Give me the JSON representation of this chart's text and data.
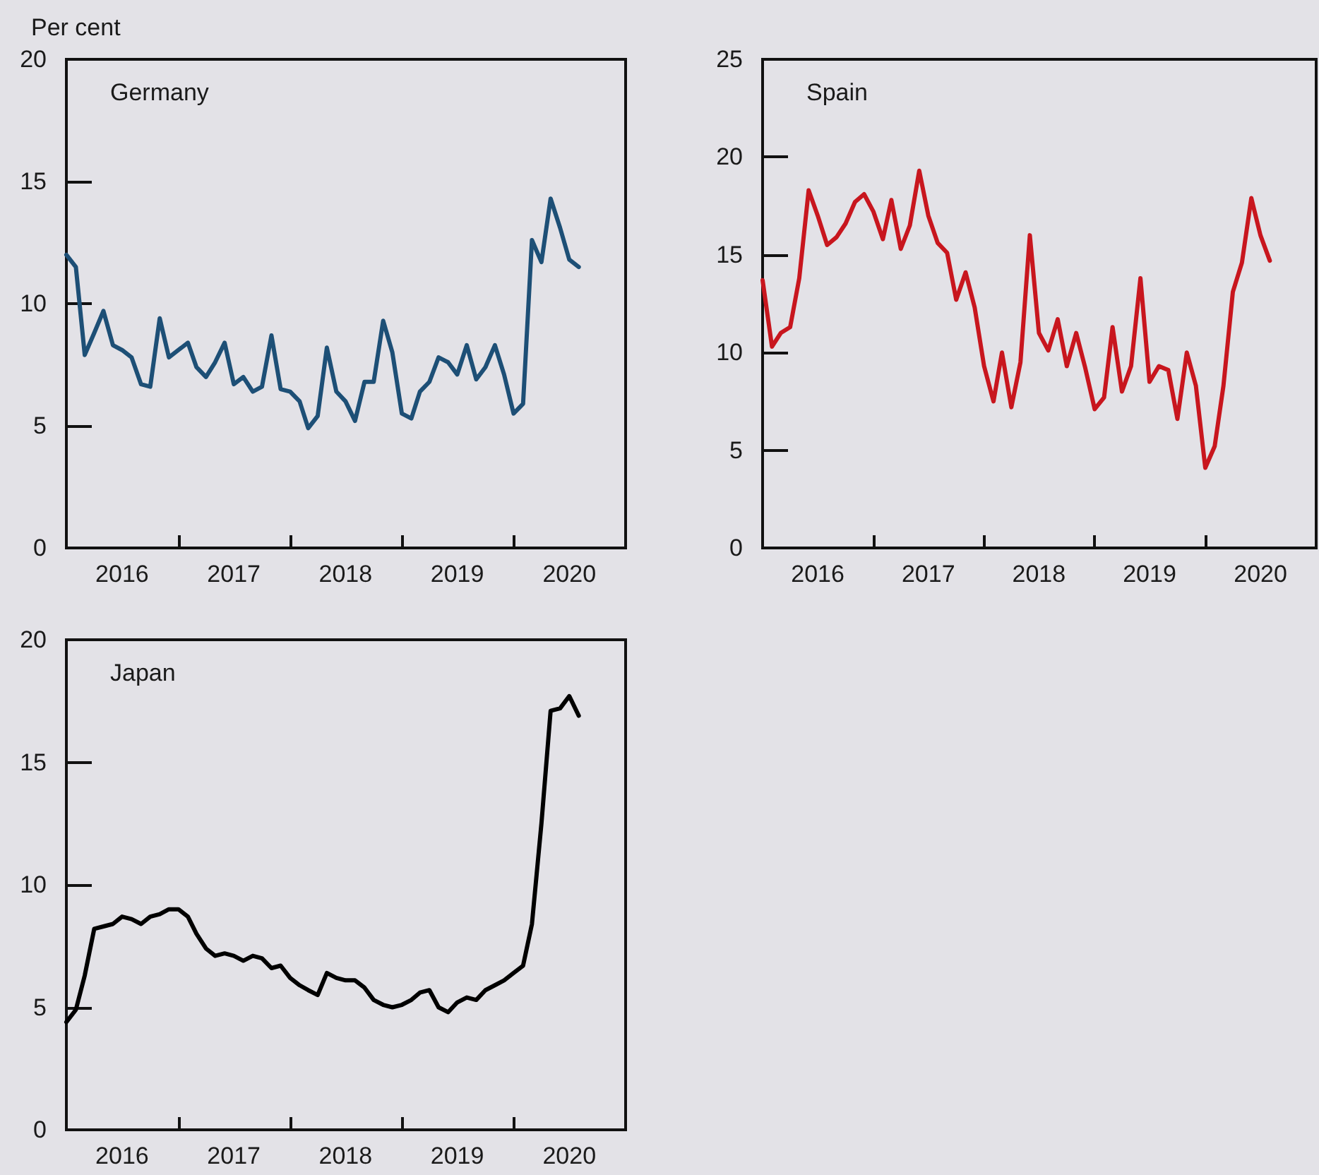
{
  "chart_data": [
    {
      "type": "line",
      "title": "Germany",
      "ylabel": "Per cent",
      "x": [
        "2016-01",
        "2016-02",
        "2016-03",
        "2016-04",
        "2016-05",
        "2016-06",
        "2016-07",
        "2016-08",
        "2016-09",
        "2016-10",
        "2016-11",
        "2016-12",
        "2017-01",
        "2017-02",
        "2017-03",
        "2017-04",
        "2017-05",
        "2017-06",
        "2017-07",
        "2017-08",
        "2017-09",
        "2017-10",
        "2017-11",
        "2017-12",
        "2018-01",
        "2018-02",
        "2018-03",
        "2018-04",
        "2018-05",
        "2018-06",
        "2018-07",
        "2018-08",
        "2018-09",
        "2018-10",
        "2018-11",
        "2018-12",
        "2019-01",
        "2019-02",
        "2019-03",
        "2019-04",
        "2019-05",
        "2019-06",
        "2019-07",
        "2019-08",
        "2019-09",
        "2019-10",
        "2019-11",
        "2019-12",
        "2020-01",
        "2020-02",
        "2020-03",
        "2020-04",
        "2020-05",
        "2020-06",
        "2020-07",
        "2020-08"
      ],
      "series": [
        {
          "color": "#1d4f76",
          "values": [
            12.0,
            11.5,
            7.9,
            8.8,
            9.7,
            8.3,
            8.1,
            7.8,
            6.7,
            6.6,
            9.4,
            7.8,
            8.1,
            8.4,
            7.4,
            7.0,
            7.6,
            8.4,
            6.7,
            7.0,
            6.4,
            6.6,
            8.7,
            6.5,
            6.4,
            6.0,
            4.9,
            5.4,
            8.2,
            6.4,
            6.0,
            5.2,
            6.8,
            6.8,
            9.3,
            8.0,
            5.5,
            5.3,
            6.4,
            6.8,
            7.8,
            7.6,
            7.1,
            8.3,
            6.9,
            7.4,
            8.3,
            7.1,
            5.5,
            5.9,
            12.6,
            11.7,
            14.3,
            13.1,
            11.8,
            11.5
          ]
        }
      ],
      "xlim": [
        "2016-01",
        "2021-01"
      ],
      "xticks": [
        {
          "value": "2016-07",
          "label": "2016"
        },
        {
          "value": "2017-01",
          "label": null
        },
        {
          "value": "2017-07",
          "label": "2017"
        },
        {
          "value": "2018-01",
          "label": null
        },
        {
          "value": "2018-07",
          "label": "2018"
        },
        {
          "value": "2019-01",
          "label": null
        },
        {
          "value": "2019-07",
          "label": "2019"
        },
        {
          "value": "2020-01",
          "label": null
        },
        {
          "value": "2020-07",
          "label": "2020"
        }
      ],
      "ylim": [
        0,
        20
      ],
      "yticks": [
        0,
        5,
        10,
        15,
        20
      ],
      "grid": false,
      "marker": "none",
      "line_style": "solid"
    },
    {
      "type": "line",
      "title": "Spain",
      "x": [
        "2016-01",
        "2016-02",
        "2016-03",
        "2016-04",
        "2016-05",
        "2016-06",
        "2016-07",
        "2016-08",
        "2016-09",
        "2016-10",
        "2016-11",
        "2016-12",
        "2017-01",
        "2017-02",
        "2017-03",
        "2017-04",
        "2017-05",
        "2017-06",
        "2017-07",
        "2017-08",
        "2017-09",
        "2017-10",
        "2017-11",
        "2017-12",
        "2018-01",
        "2018-02",
        "2018-03",
        "2018-04",
        "2018-05",
        "2018-06",
        "2018-07",
        "2018-08",
        "2018-09",
        "2018-10",
        "2018-11",
        "2018-12",
        "2019-01",
        "2019-02",
        "2019-03",
        "2019-04",
        "2019-05",
        "2019-06",
        "2019-07",
        "2019-08",
        "2019-09",
        "2019-10",
        "2019-11",
        "2019-12",
        "2020-01",
        "2020-02",
        "2020-03",
        "2020-04",
        "2020-05",
        "2020-06",
        "2020-07",
        "2020-08"
      ],
      "series": [
        {
          "color": "#c8161e",
          "values": [
            13.7,
            10.3,
            11.0,
            11.3,
            13.8,
            18.3,
            17.0,
            15.5,
            15.9,
            16.6,
            17.7,
            18.1,
            17.2,
            15.8,
            17.8,
            15.3,
            16.5,
            19.3,
            17.0,
            15.6,
            15.1,
            12.7,
            14.1,
            12.3,
            9.3,
            7.5,
            10.0,
            7.2,
            9.5,
            16.0,
            11.0,
            10.1,
            11.7,
            9.3,
            11.0,
            9.2,
            7.1,
            7.7,
            11.3,
            8.0,
            9.3,
            13.8,
            8.5,
            9.3,
            9.1,
            6.6,
            10.0,
            8.3,
            4.1,
            5.2,
            8.3,
            13.1,
            14.6,
            17.9,
            16.0,
            14.7
          ]
        }
      ],
      "xlim": [
        "2016-01",
        "2021-01"
      ],
      "xticks": [
        {
          "value": "2016-07",
          "label": "2016"
        },
        {
          "value": "2017-01",
          "label": null
        },
        {
          "value": "2017-07",
          "label": "2017"
        },
        {
          "value": "2018-01",
          "label": null
        },
        {
          "value": "2018-07",
          "label": "2018"
        },
        {
          "value": "2019-01",
          "label": null
        },
        {
          "value": "2019-07",
          "label": "2019"
        },
        {
          "value": "2020-01",
          "label": null
        },
        {
          "value": "2020-07",
          "label": "2020"
        }
      ],
      "ylim": [
        0,
        25
      ],
      "yticks": [
        0,
        5,
        10,
        15,
        20,
        25
      ],
      "grid": false,
      "marker": "none",
      "line_style": "solid"
    },
    {
      "type": "line",
      "title": "Japan",
      "x": [
        "2016-01",
        "2016-02",
        "2016-03",
        "2016-04",
        "2016-05",
        "2016-06",
        "2016-07",
        "2016-08",
        "2016-09",
        "2016-10",
        "2016-11",
        "2016-12",
        "2017-01",
        "2017-02",
        "2017-03",
        "2017-04",
        "2017-05",
        "2017-06",
        "2017-07",
        "2017-08",
        "2017-09",
        "2017-10",
        "2017-11",
        "2017-12",
        "2018-01",
        "2018-02",
        "2018-03",
        "2018-04",
        "2018-05",
        "2018-06",
        "2018-07",
        "2018-08",
        "2018-09",
        "2018-10",
        "2018-11",
        "2018-12",
        "2019-01",
        "2019-02",
        "2019-03",
        "2019-04",
        "2019-05",
        "2019-06",
        "2019-07",
        "2019-08",
        "2019-09",
        "2019-10",
        "2019-11",
        "2019-12",
        "2020-01",
        "2020-02",
        "2020-03",
        "2020-04",
        "2020-05",
        "2020-06",
        "2020-07",
        "2020-08"
      ],
      "series": [
        {
          "color": "#000000",
          "values": [
            4.4,
            4.9,
            6.3,
            8.2,
            8.3,
            8.4,
            8.7,
            8.6,
            8.4,
            8.7,
            8.8,
            9.0,
            9.0,
            8.7,
            8.0,
            7.4,
            7.1,
            7.2,
            7.1,
            6.9,
            7.1,
            7.0,
            6.6,
            6.7,
            6.2,
            5.9,
            5.7,
            5.5,
            6.4,
            6.2,
            6.1,
            6.1,
            5.8,
            5.3,
            5.1,
            5.0,
            5.1,
            5.3,
            5.6,
            5.7,
            5.0,
            4.8,
            5.2,
            5.4,
            5.3,
            5.7,
            5.9,
            6.1,
            6.4,
            6.7,
            8.4,
            12.5,
            17.1,
            17.2,
            17.7,
            16.9
          ]
        }
      ],
      "xlim": [
        "2016-01",
        "2021-01"
      ],
      "xticks": [
        {
          "value": "2016-07",
          "label": "2016"
        },
        {
          "value": "2017-01",
          "label": null
        },
        {
          "value": "2017-07",
          "label": "2017"
        },
        {
          "value": "2018-01",
          "label": null
        },
        {
          "value": "2018-07",
          "label": "2018"
        },
        {
          "value": "2019-01",
          "label": null
        },
        {
          "value": "2019-07",
          "label": "2019"
        },
        {
          "value": "2020-01",
          "label": null
        },
        {
          "value": "2020-07",
          "label": "2020"
        }
      ],
      "ylim": [
        0,
        20
      ],
      "yticks": [
        0,
        5,
        10,
        15,
        20
      ],
      "grid": false,
      "marker": "none",
      "line_style": "solid"
    }
  ]
}
